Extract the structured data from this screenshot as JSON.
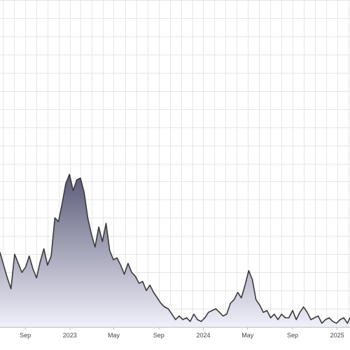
{
  "chart_data": {
    "type": "area",
    "title": "",
    "xlabel": "",
    "ylabel": "",
    "grid": true,
    "legend": "none",
    "x_ticks": [
      {
        "label": "Sep",
        "date": "2022-09-01"
      },
      {
        "label": "2023",
        "date": "2023-01-01"
      },
      {
        "label": "May",
        "date": "2023-05-01"
      },
      {
        "label": "Sep",
        "date": "2023-09-01"
      },
      {
        "label": "2024",
        "date": "2024-01-01"
      },
      {
        "label": "May",
        "date": "2024-05-01"
      },
      {
        "label": "Sep",
        "date": "2024-09-01"
      },
      {
        "label": "2025",
        "date": "2025-01-01"
      }
    ],
    "xlim": [
      "2022-06-24",
      "2025-02-05"
    ],
    "ylim": [
      0,
      18
    ],
    "colors": {
      "line": "#3a3a3a",
      "fill_top": "#5a5a78",
      "fill_bottom": "#f0f0fa",
      "grid": "#e6e6e6"
    },
    "series": [
      {
        "x": [
          "2022-06-24",
          "2022-07-04",
          "2022-07-14",
          "2022-07-24",
          "2022-08-03",
          "2022-08-13",
          "2022-08-23",
          "2022-09-02",
          "2022-09-12",
          "2022-09-22",
          "2022-10-02",
          "2022-10-12",
          "2022-10-22",
          "2022-11-01",
          "2022-11-11",
          "2022-11-21",
          "2022-12-01",
          "2022-12-11",
          "2022-12-21",
          "2022-12-31",
          "2023-01-10",
          "2023-01-20",
          "2023-01-30",
          "2023-02-09",
          "2023-02-19",
          "2023-03-01",
          "2023-03-11",
          "2023-03-21",
          "2023-03-31",
          "2023-04-10",
          "2023-04-20",
          "2023-04-30",
          "2023-05-10",
          "2023-05-20",
          "2023-05-30",
          "2023-06-09",
          "2023-06-19",
          "2023-06-29",
          "2023-07-09",
          "2023-07-19",
          "2023-07-29",
          "2023-08-08",
          "2023-08-18",
          "2023-08-28",
          "2023-09-07",
          "2023-09-17",
          "2023-09-27",
          "2023-10-07",
          "2023-10-17",
          "2023-10-27",
          "2023-11-06",
          "2023-11-16",
          "2023-11-26",
          "2023-12-06",
          "2023-12-16",
          "2023-12-26",
          "2024-01-05",
          "2024-01-15",
          "2024-01-25",
          "2024-02-04",
          "2024-02-14",
          "2024-02-24",
          "2024-03-05",
          "2024-03-15",
          "2024-03-25",
          "2024-04-04",
          "2024-04-14",
          "2024-04-24",
          "2024-05-04",
          "2024-05-14",
          "2024-05-24",
          "2024-06-03",
          "2024-06-13",
          "2024-06-23",
          "2024-07-03",
          "2024-07-13",
          "2024-07-23",
          "2024-08-02",
          "2024-08-12",
          "2024-08-22",
          "2024-09-01",
          "2024-09-11",
          "2024-09-21",
          "2024-10-01",
          "2024-10-11",
          "2024-10-21",
          "2024-10-31",
          "2024-11-10",
          "2024-11-20",
          "2024-11-30",
          "2024-12-10",
          "2024-12-20",
          "2024-12-30",
          "2025-01-09",
          "2025-01-19",
          "2025-01-29",
          "2025-02-05"
        ],
        "values": [
          4.1,
          3.4,
          2.7,
          2.1,
          4.0,
          3.5,
          3.0,
          3.3,
          3.9,
          3.2,
          2.7,
          3.6,
          4.3,
          3.4,
          3.9,
          6.0,
          5.8,
          6.8,
          7.9,
          8.4,
          7.5,
          8.1,
          8.2,
          7.4,
          6.0,
          5.1,
          4.4,
          5.5,
          4.7,
          5.7,
          4.2,
          3.7,
          3.8,
          3.4,
          2.9,
          3.5,
          3.0,
          2.8,
          2.4,
          2.5,
          2.0,
          2.3,
          1.9,
          1.6,
          1.3,
          1.1,
          1.0,
          0.7,
          0.4,
          0.6,
          0.4,
          0.5,
          0.3,
          0.7,
          0.4,
          0.3,
          0.5,
          0.8,
          0.9,
          1.0,
          0.8,
          0.6,
          0.7,
          1.3,
          1.5,
          1.9,
          1.6,
          2.3,
          3.1,
          2.6,
          1.5,
          1.2,
          0.8,
          0.9,
          0.5,
          0.7,
          0.4,
          0.7,
          0.5,
          0.5,
          0.9,
          0.4,
          0.8,
          1.1,
          0.8,
          0.4,
          0.5,
          0.6,
          0.2,
          0.4,
          0.5,
          0.3,
          0.2,
          0.4,
          0.5,
          0.2,
          0.5
        ]
      }
    ]
  }
}
